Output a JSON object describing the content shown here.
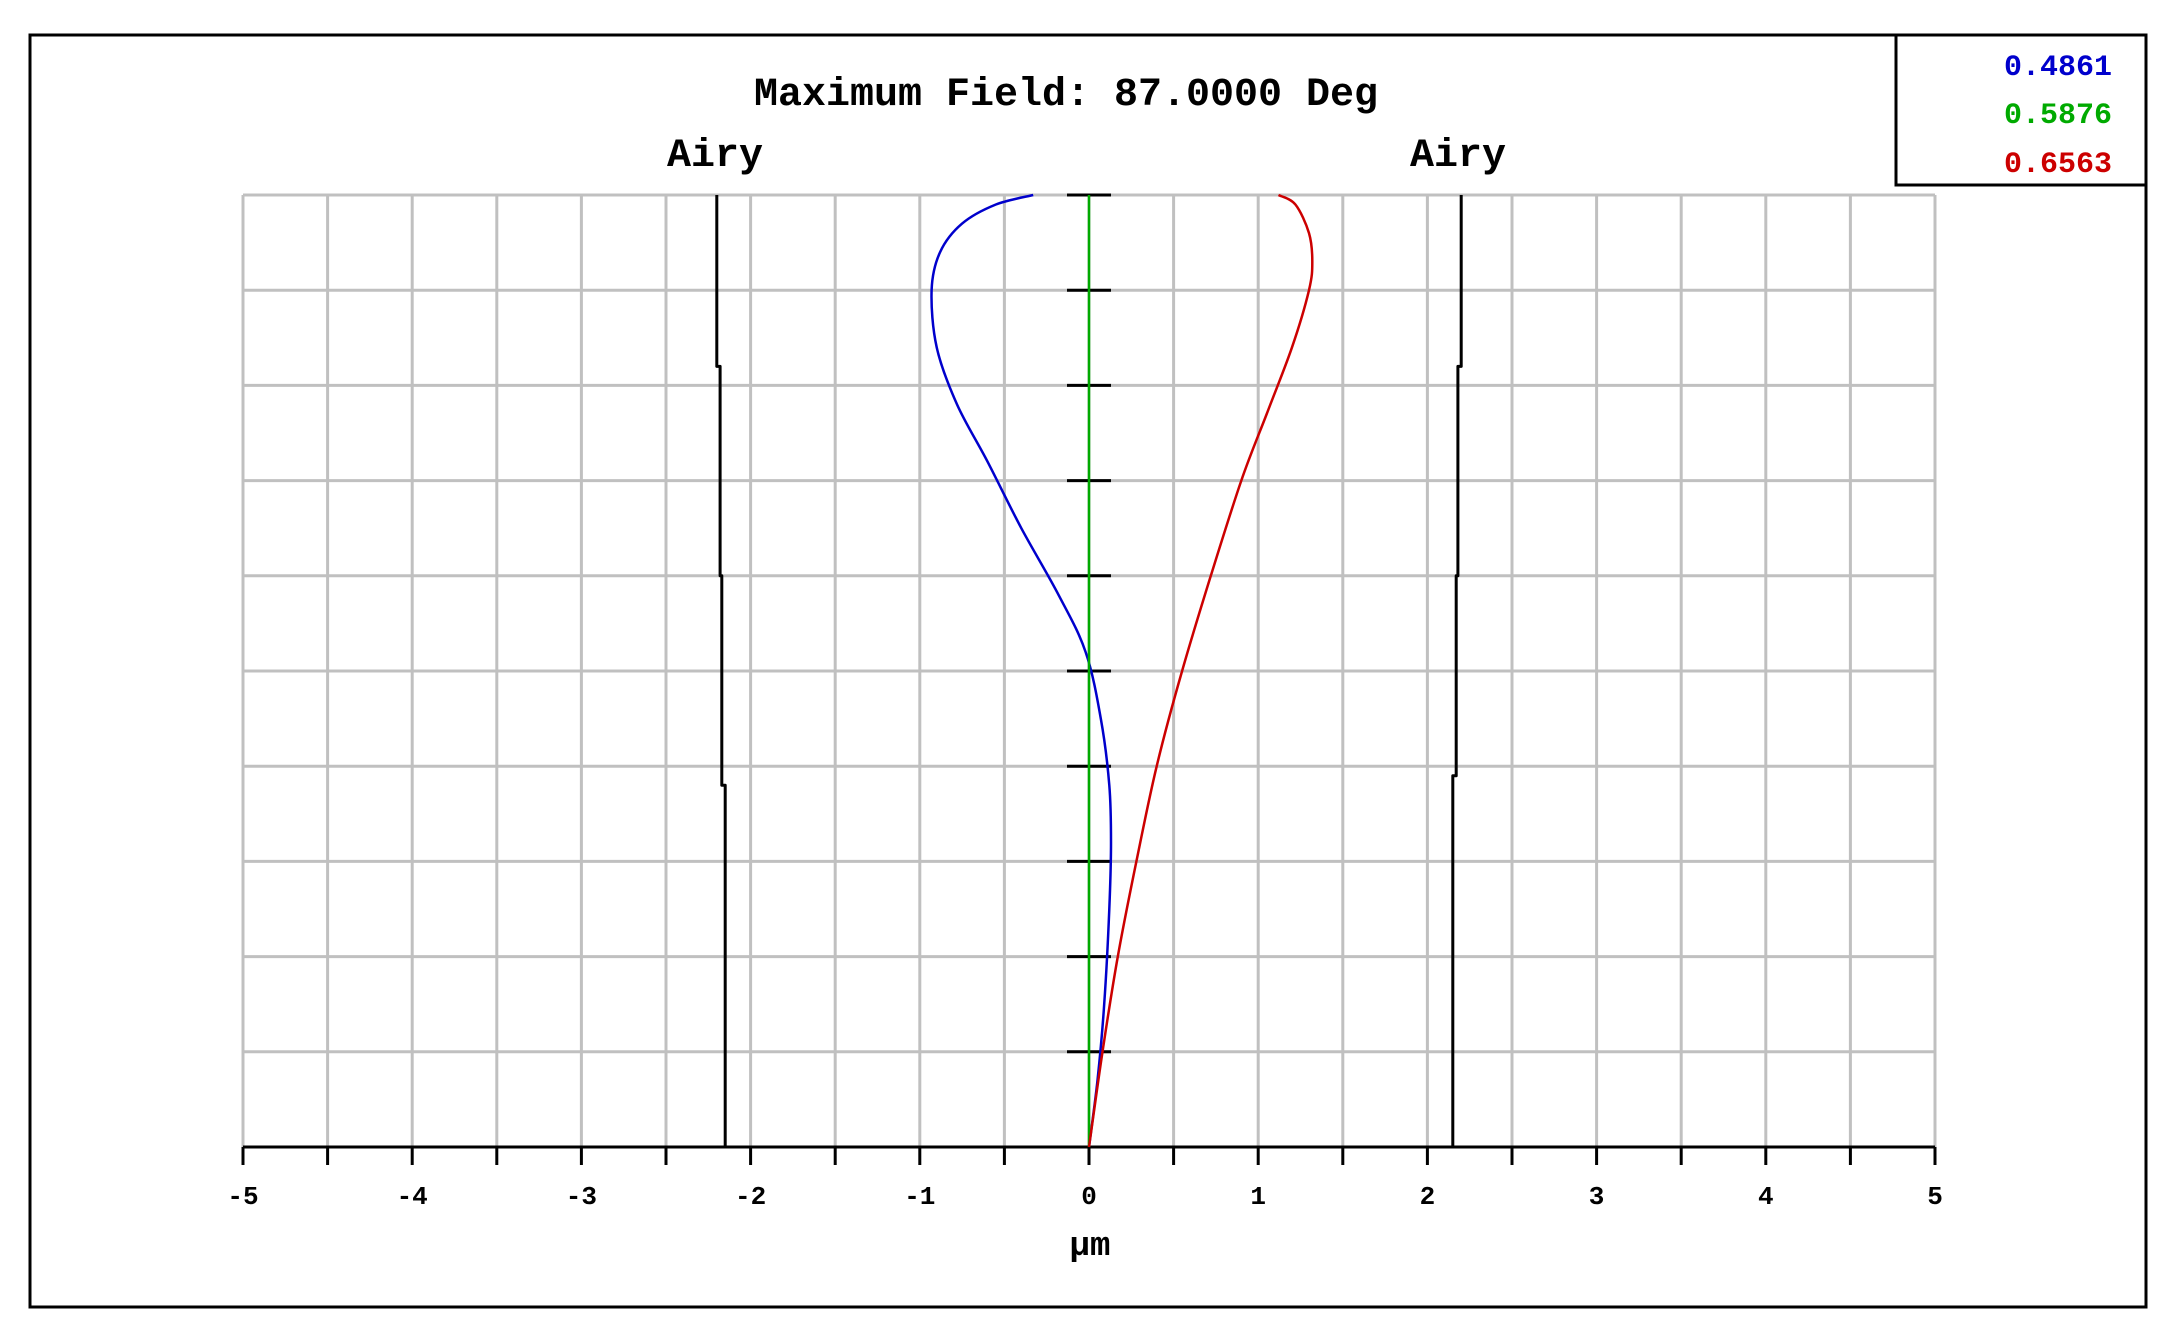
{
  "chart_data": {
    "type": "line",
    "title": "Maximum Field: 87.0000 Deg",
    "xlabel": "µm",
    "ylabel": "",
    "xlim": [
      -5,
      5
    ],
    "x_ticks": [
      -5,
      -4,
      -3,
      -2,
      -1,
      0,
      1,
      2,
      3,
      4,
      5
    ],
    "y_ticks": [
      0,
      0.1,
      0.2,
      0.3,
      0.4,
      0.5,
      0.6,
      0.7,
      0.8,
      0.9,
      1.0
    ],
    "ylim": [
      0,
      1
    ],
    "grid": true,
    "legend_placement": "top-right",
    "airy_labels": [
      "Airy",
      "Airy"
    ],
    "series": [
      {
        "name": "0.4861",
        "color": "#0000cc",
        "x": [
          0,
          0.05,
          0.09,
          0.12,
          0.13,
          0.12,
          0.07,
          -0.02,
          -0.18,
          -0.4,
          -0.6,
          -0.78,
          -0.9,
          -0.93,
          -0.88,
          -0.75,
          -0.55,
          -0.33
        ],
        "y": [
          0,
          0.07,
          0.15,
          0.25,
          0.32,
          0.38,
          0.45,
          0.52,
          0.58,
          0.65,
          0.72,
          0.78,
          0.84,
          0.9,
          0.94,
          0.97,
          0.99,
          1.0
        ]
      },
      {
        "name": "0.5876",
        "color": "#00aa00",
        "x": [
          0,
          0,
          0,
          0,
          0,
          0,
          0,
          0,
          0,
          0,
          0
        ],
        "y": [
          0,
          0.1,
          0.2,
          0.3,
          0.4,
          0.5,
          0.6,
          0.7,
          0.8,
          0.9,
          1.0
        ]
      },
      {
        "name": "0.6563",
        "color": "#cc0000",
        "x": [
          0,
          0.08,
          0.17,
          0.28,
          0.4,
          0.55,
          0.72,
          0.9,
          1.05,
          1.2,
          1.3,
          1.32,
          1.3,
          1.22,
          1.12
        ],
        "y": [
          0,
          0.1,
          0.2,
          0.3,
          0.4,
          0.5,
          0.6,
          0.7,
          0.77,
          0.84,
          0.9,
          0.93,
          0.96,
          0.99,
          1.0
        ]
      }
    ],
    "airy_left": {
      "color": "#000000",
      "x": [
        -2.15,
        -2.15,
        -2.17,
        -2.17,
        -2.18,
        -2.18,
        -2.2,
        -2.2
      ],
      "y": [
        0,
        0.38,
        0.38,
        0.6,
        0.6,
        0.82,
        0.82,
        1.0
      ]
    },
    "airy_right": {
      "color": "#000000",
      "x": [
        2.15,
        2.15,
        2.17,
        2.17,
        2.18,
        2.18,
        2.2,
        2.2
      ],
      "y": [
        0,
        0.39,
        0.39,
        0.6,
        0.6,
        0.82,
        0.82,
        1.0
      ]
    }
  }
}
